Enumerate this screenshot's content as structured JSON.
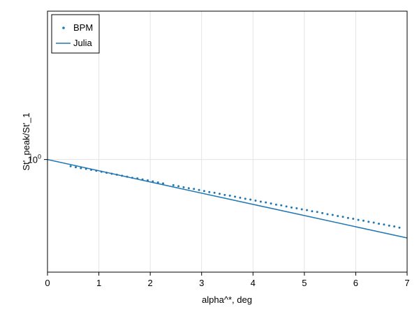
{
  "chart_data": {
    "type": "line",
    "title": "",
    "xlabel": "alpha^*, deg",
    "ylabel": "St'_peak/St'_1",
    "xlim": [
      0,
      7
    ],
    "ylim": [
      0.7,
      1.6
    ],
    "yscale": "log10",
    "x_ticks": [
      "0",
      "1",
      "2",
      "3",
      "4",
      "5",
      "6",
      "7"
    ],
    "y_ticks": [
      {
        "base": "10",
        "exp": "0",
        "value": 1.0
      }
    ],
    "grid": true,
    "legend_position": "top-left",
    "series": [
      {
        "name": "BPM",
        "style": "scatter",
        "color": "#1f77b4",
        "x": [
          0.45,
          0.55,
          0.65,
          0.75,
          0.85,
          0.95,
          1.05,
          1.15,
          1.25,
          1.35,
          1.45,
          1.55,
          1.65,
          1.75,
          1.85,
          1.95,
          2.05,
          2.15,
          2.25,
          2.45,
          2.55,
          2.65,
          2.75,
          2.85,
          2.95,
          3.05,
          3.15,
          3.25,
          3.35,
          3.45,
          3.55,
          3.65,
          3.75,
          3.85,
          3.95,
          4.05,
          4.15,
          4.25,
          4.35,
          4.45,
          4.55,
          4.65,
          4.75,
          4.85,
          4.95,
          5.05,
          5.15,
          5.25,
          5.35,
          5.45,
          5.55,
          5.65,
          5.75,
          5.85,
          5.95,
          6.05,
          6.15,
          6.25,
          6.35,
          6.45,
          6.55,
          6.65,
          6.75,
          6.85
        ],
        "y": [
          0.979,
          0.976,
          0.973,
          0.971,
          0.968,
          0.965,
          0.962,
          0.959,
          0.956,
          0.953,
          0.95,
          0.947,
          0.944,
          0.942,
          0.939,
          0.936,
          0.933,
          0.93,
          0.927,
          0.922,
          0.919,
          0.916,
          0.913,
          0.911,
          0.908,
          0.905,
          0.902,
          0.9,
          0.897,
          0.894,
          0.892,
          0.889,
          0.886,
          0.883,
          0.881,
          0.878,
          0.875,
          0.873,
          0.87,
          0.867,
          0.865,
          0.862,
          0.859,
          0.857,
          0.854,
          0.852,
          0.849,
          0.847,
          0.844,
          0.841,
          0.839,
          0.836,
          0.834,
          0.831,
          0.829,
          0.826,
          0.824,
          0.821,
          0.819,
          0.816,
          0.814,
          0.811,
          0.809,
          0.806
        ]
      },
      {
        "name": "Julia",
        "style": "line",
        "color": "#1f77b4",
        "x": [
          0,
          7
        ],
        "y": [
          1.0,
          0.78
        ]
      }
    ]
  }
}
